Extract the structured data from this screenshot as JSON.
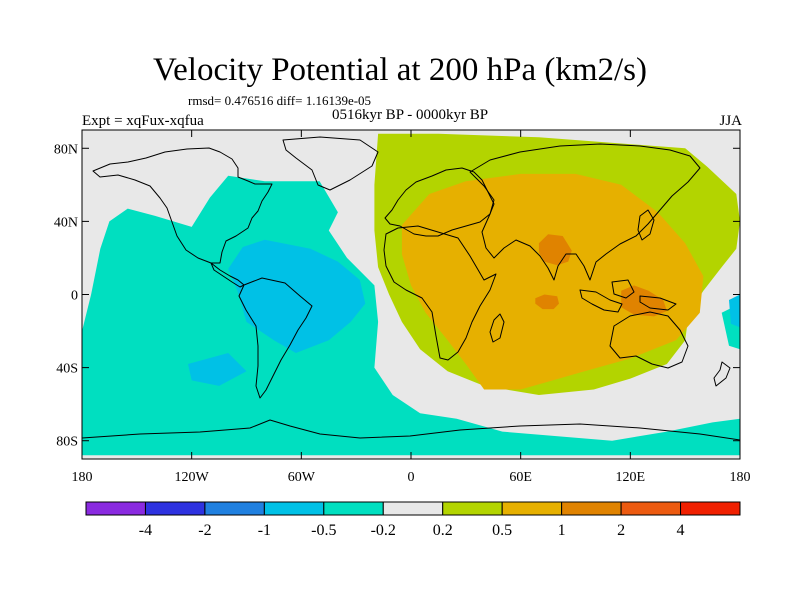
{
  "title": "Velocity Potential at 200 hPa (km2/s)",
  "stats": "rmsd= 0.476516 diff= 1.16139e-05",
  "left_label": "Expt = xqFux-xqfua",
  "center_label": "0516kyr BP - 0000kyr BP",
  "right_label": "JJA",
  "map": {
    "lat_ticks": [
      {
        "value": 80,
        "label": "80N"
      },
      {
        "value": 40,
        "label": "40N"
      },
      {
        "value": 0,
        "label": "0"
      },
      {
        "value": -40,
        "label": "40S"
      },
      {
        "value": -80,
        "label": "80S"
      }
    ],
    "lon_ticks": [
      {
        "value": -180,
        "label": "180"
      },
      {
        "value": -120,
        "label": "120W"
      },
      {
        "value": -60,
        "label": "60W"
      },
      {
        "value": 0,
        "label": "0"
      },
      {
        "value": 60,
        "label": "60E"
      },
      {
        "value": 120,
        "label": "120E"
      },
      {
        "value": 180,
        "label": "180"
      }
    ],
    "field_regions": [
      {
        "name": "positive-light-region",
        "level": "0.2 to 0.5",
        "color": "#b3d400",
        "points": [
          [
            -18,
            88
          ],
          [
            15,
            88
          ],
          [
            70,
            86
          ],
          [
            150,
            80
          ],
          [
            162,
            70
          ],
          [
            178,
            55
          ],
          [
            180,
            40
          ],
          [
            178,
            25
          ],
          [
            170,
            15
          ],
          [
            160,
            2
          ],
          [
            152,
            -10
          ],
          [
            150,
            -25
          ],
          [
            140,
            -38
          ],
          [
            120,
            -46
          ],
          [
            100,
            -52
          ],
          [
            70,
            -55
          ],
          [
            40,
            -50
          ],
          [
            20,
            -42
          ],
          [
            5,
            -30
          ],
          [
            -5,
            -15
          ],
          [
            -12,
            0
          ],
          [
            -18,
            15
          ],
          [
            -20,
            35
          ],
          [
            -20,
            60
          ]
        ]
      },
      {
        "name": "positive-medium-region",
        "level": "0.5 to 1",
        "color": "#e6b000",
        "points": [
          [
            -5,
            38
          ],
          [
            10,
            55
          ],
          [
            30,
            62
          ],
          [
            60,
            66
          ],
          [
            90,
            66
          ],
          [
            115,
            60
          ],
          [
            135,
            45
          ],
          [
            150,
            28
          ],
          [
            160,
            10
          ],
          [
            158,
            -10
          ],
          [
            145,
            -25
          ],
          [
            120,
            -35
          ],
          [
            95,
            -42
          ],
          [
            60,
            -52
          ],
          [
            40,
            -52
          ],
          [
            30,
            -38
          ],
          [
            20,
            -25
          ],
          [
            8,
            -10
          ],
          [
            0,
            5
          ],
          [
            -5,
            22
          ]
        ]
      },
      {
        "name": "positive-strong-region-south-asia",
        "level": "1 to 2",
        "color": "#e08300",
        "points": [
          [
            70,
            28
          ],
          [
            75,
            33
          ],
          [
            83,
            32
          ],
          [
            88,
            24
          ],
          [
            86,
            18
          ],
          [
            80,
            16
          ],
          [
            73,
            18
          ],
          [
            70,
            23
          ]
        ]
      },
      {
        "name": "positive-strong-region-indian-ocean",
        "level": "1 to 2",
        "color": "#e08300",
        "points": [
          [
            68,
            -2
          ],
          [
            73,
            0
          ],
          [
            80,
            -1
          ],
          [
            81,
            -5
          ],
          [
            78,
            -8
          ],
          [
            72,
            -8
          ],
          [
            68,
            -5
          ]
        ]
      },
      {
        "name": "positive-strong-region-maritime-continent",
        "level": "1 to 2",
        "color": "#e08300",
        "points": [
          [
            115,
            2
          ],
          [
            122,
            5
          ],
          [
            130,
            2
          ],
          [
            138,
            -3
          ],
          [
            140,
            -9
          ],
          [
            133,
            -12
          ],
          [
            122,
            -11
          ],
          [
            115,
            -7
          ]
        ]
      },
      {
        "name": "negative-light-region",
        "level": "-0.5 to -0.2",
        "color": "#00dfc0",
        "points": [
          [
            -180,
            -88
          ],
          [
            -180,
            -20
          ],
          [
            -175,
            0
          ],
          [
            -170,
            25
          ],
          [
            -165,
            40
          ],
          [
            -155,
            47
          ],
          [
            -140,
            43
          ],
          [
            -120,
            37
          ],
          [
            -110,
            53
          ],
          [
            -100,
            65
          ],
          [
            -80,
            62
          ],
          [
            -50,
            62
          ],
          [
            -40,
            45
          ],
          [
            -45,
            35
          ],
          [
            -35,
            20
          ],
          [
            -20,
            5
          ],
          [
            -18,
            -15
          ],
          [
            -20,
            -40
          ],
          [
            -10,
            -55
          ],
          [
            5,
            -65
          ],
          [
            25,
            -68
          ],
          [
            50,
            -75
          ],
          [
            110,
            -80
          ],
          [
            140,
            -75
          ],
          [
            165,
            -70
          ],
          [
            180,
            -68
          ],
          [
            180,
            -88
          ]
        ]
      },
      {
        "name": "negative-light-region-east-pacific-edge",
        "level": "-0.5 to -0.2",
        "color": "#00dfc0",
        "points": [
          [
            170,
            -10
          ],
          [
            180,
            -5
          ],
          [
            180,
            -30
          ],
          [
            174,
            -28
          ]
        ]
      },
      {
        "name": "negative-medium-region-americas",
        "level": "-1 to -0.5",
        "color": "#00c1e6",
        "points": [
          [
            -80,
            30
          ],
          [
            -92,
            26
          ],
          [
            -100,
            14
          ],
          [
            -95,
            2
          ],
          [
            -90,
            -15
          ],
          [
            -75,
            -25
          ],
          [
            -63,
            -32
          ],
          [
            -45,
            -25
          ],
          [
            -33,
            -15
          ],
          [
            -25,
            -5
          ],
          [
            -28,
            8
          ],
          [
            -40,
            18
          ],
          [
            -55,
            25
          ]
        ]
      },
      {
        "name": "negative-medium-region-south-pacific",
        "level": "-1 to -0.5",
        "color": "#00c1e6",
        "points": [
          [
            -122,
            -38
          ],
          [
            -100,
            -32
          ],
          [
            -90,
            -42
          ],
          [
            -105,
            -50
          ],
          [
            -120,
            -47
          ]
        ]
      },
      {
        "name": "negative-medium-region-pacific-edge",
        "level": "-1 to -0.5",
        "color": "#00c1e6",
        "points": [
          [
            174,
            -3
          ],
          [
            180,
            0
          ],
          [
            180,
            -18
          ],
          [
            175,
            -16
          ]
        ]
      }
    ]
  },
  "colorbar": {
    "colors": [
      "#8a2ae0",
      "#2e32e0",
      "#2080e0",
      "#00c1e6",
      "#00dfc0",
      "#e8e8e8",
      "#b3d400",
      "#e6b000",
      "#e08300",
      "#ec5a10",
      "#f02000"
    ],
    "labels": [
      "-4",
      "-2",
      "-1",
      "-0.5",
      "-0.2",
      "0.2",
      "0.5",
      "1",
      "2",
      "4"
    ]
  }
}
